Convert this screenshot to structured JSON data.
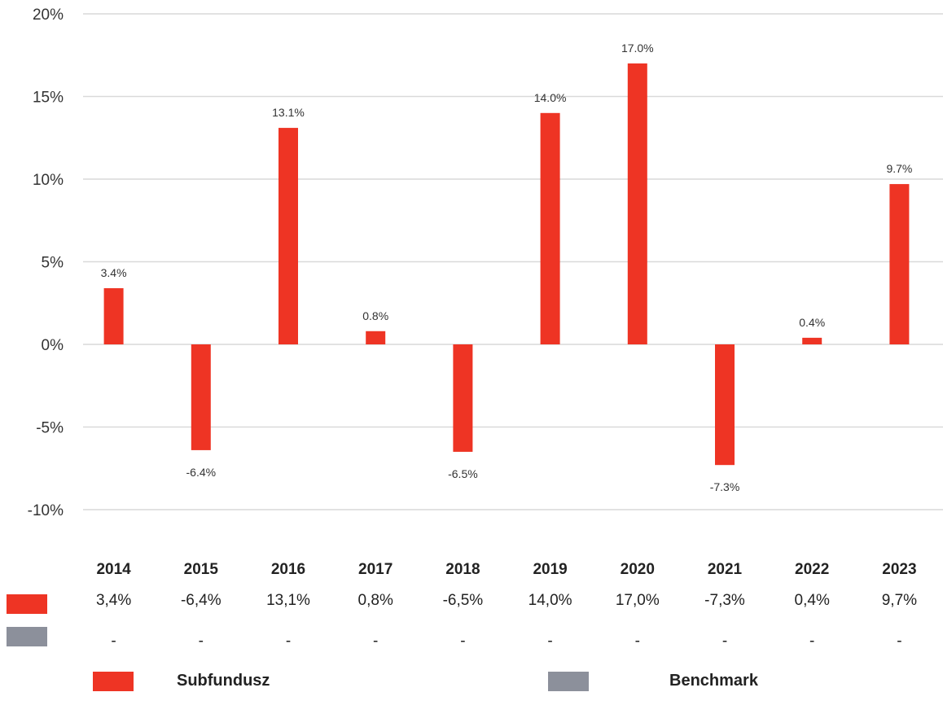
{
  "chart_data": {
    "type": "bar",
    "categories": [
      "2014",
      "2015",
      "2016",
      "2017",
      "2018",
      "2019",
      "2020",
      "2021",
      "2022",
      "2023"
    ],
    "series": [
      {
        "name": "Subfundusz",
        "color": "#ee3424",
        "values": [
          3.4,
          -6.4,
          13.1,
          0.8,
          -6.5,
          14.0,
          17.0,
          -7.3,
          0.4,
          9.7
        ],
        "labels": [
          "3.4%",
          "-6.4%",
          "13.1%",
          "0.8%",
          "-6.5%",
          "14.0%",
          "17.0%",
          "-7.3%",
          "0.4%",
          "9.7%"
        ]
      },
      {
        "name": "Benchmark",
        "color": "#8c909b",
        "values": [
          null,
          null,
          null,
          null,
          null,
          null,
          null,
          null,
          null,
          null
        ]
      }
    ],
    "ylim": [
      -10,
      20
    ],
    "yticks": [
      20,
      15,
      10,
      5,
      0,
      -5,
      -10
    ],
    "ytick_labels": [
      "20%",
      "15%",
      "10%",
      "5%",
      "0%",
      "-5%",
      "-10%"
    ],
    "grid": true,
    "legend_position": "bottom"
  },
  "table": {
    "years": [
      "2014",
      "2015",
      "2016",
      "2017",
      "2018",
      "2019",
      "2020",
      "2021",
      "2022",
      "2023"
    ],
    "subfundusz": [
      "3,4%",
      "-6,4%",
      "13,1%",
      "0,8%",
      "-6,5%",
      "14,0%",
      "17,0%",
      "-7,3%",
      "0,4%",
      "9,7%"
    ],
    "benchmark": [
      "-",
      "-",
      "-",
      "-",
      "-",
      "-",
      "-",
      "-",
      "-",
      "-"
    ]
  },
  "legend": {
    "subfundusz": "Subfundusz",
    "benchmark": "Benchmark"
  }
}
